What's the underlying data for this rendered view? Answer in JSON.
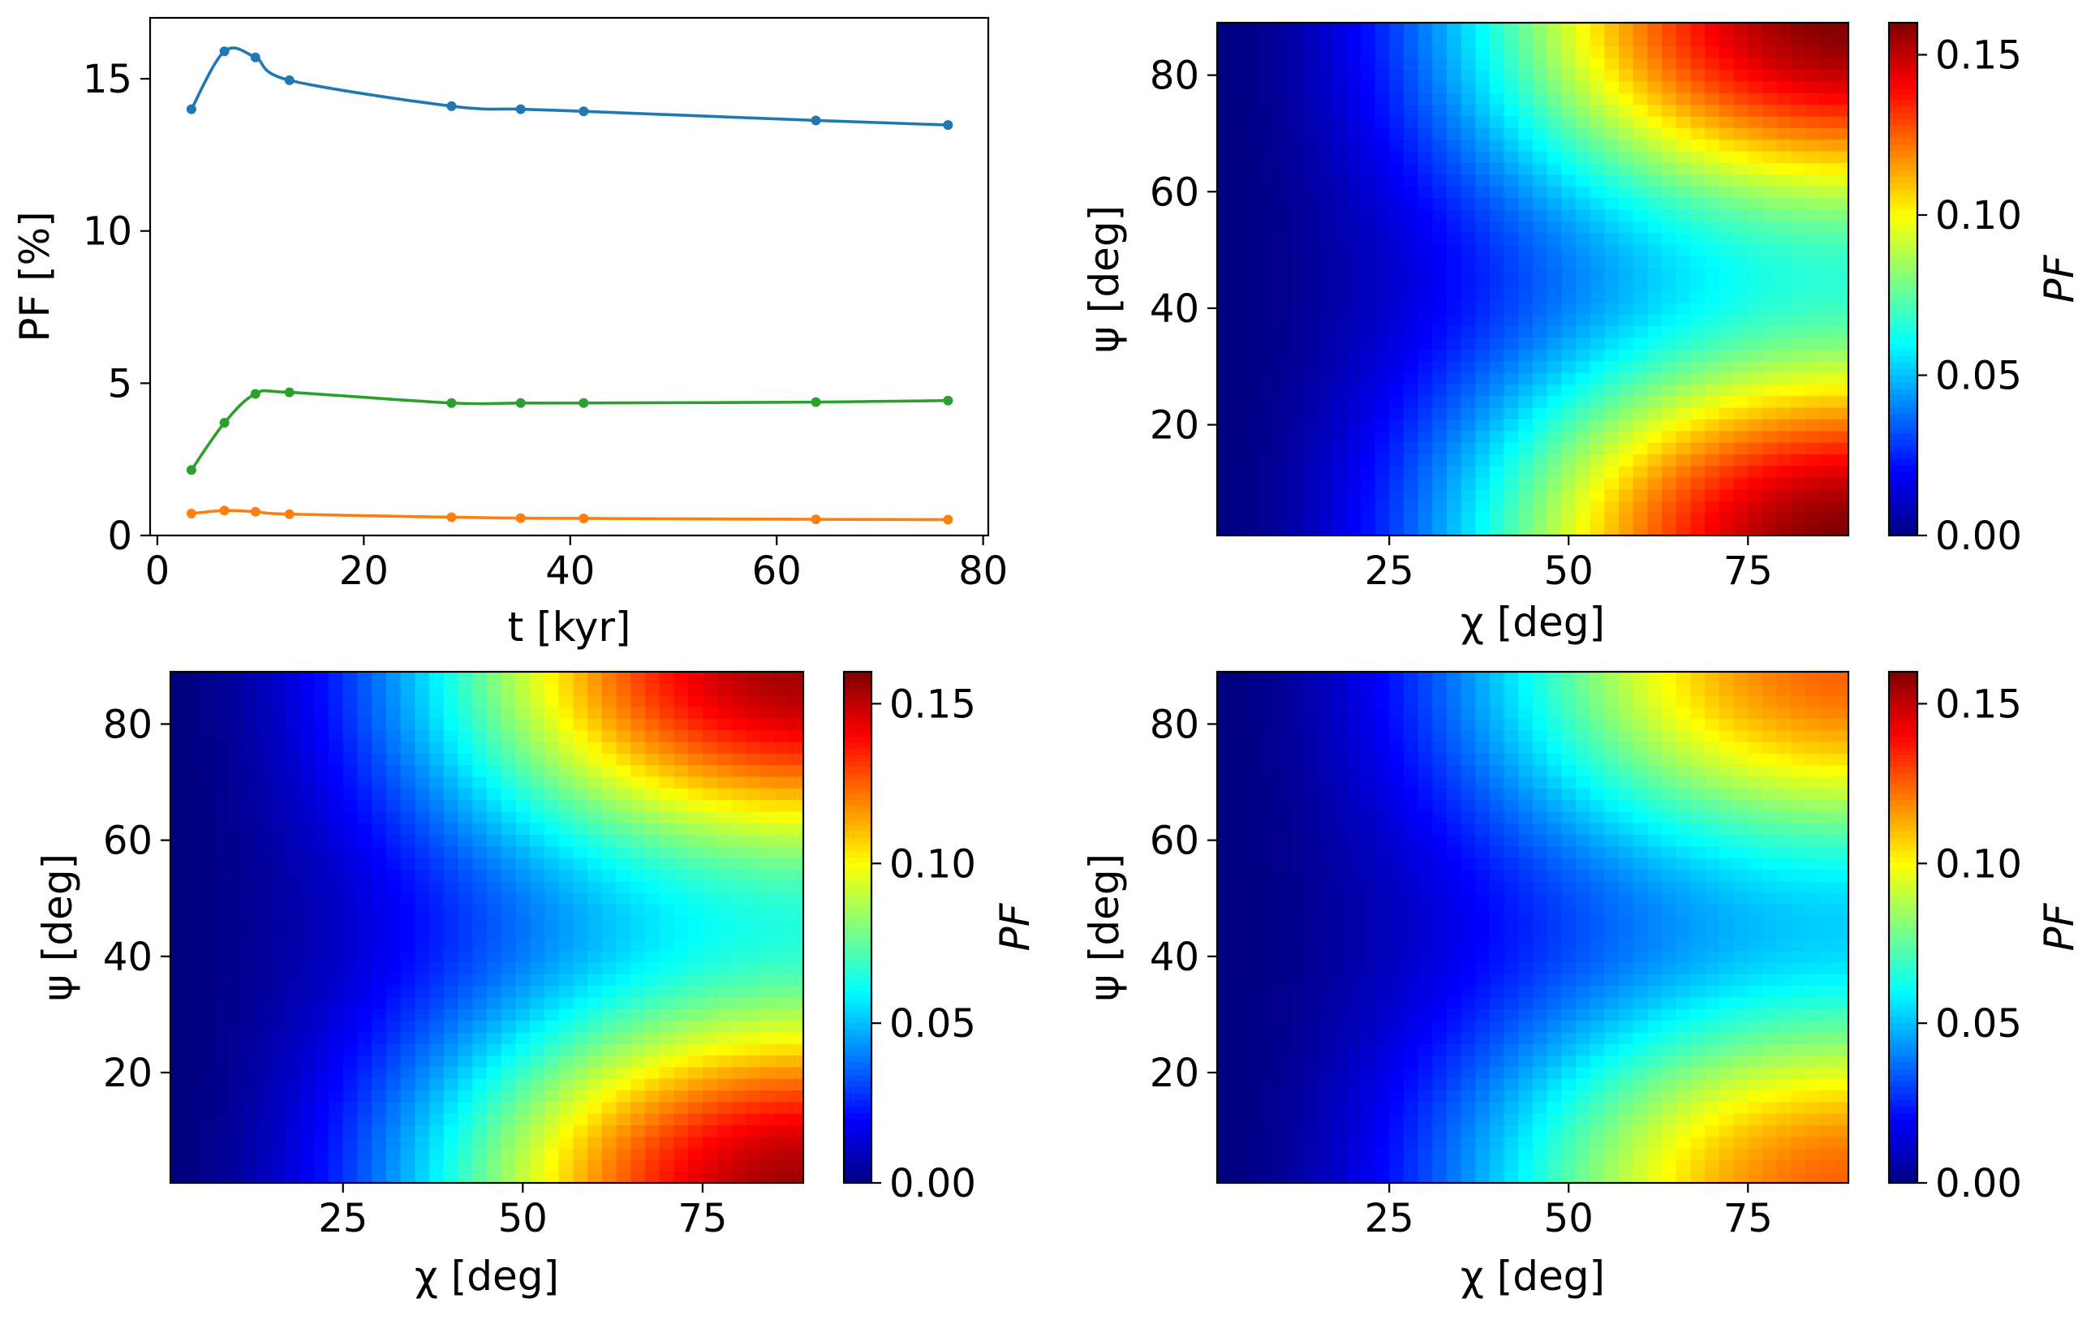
{
  "chart_data": [
    {
      "type": "line",
      "panel": "top-left",
      "title": "",
      "xlabel": "t [kyr]",
      "ylabel": "PF [%]",
      "xlim": [
        -0.7,
        80.5
      ],
      "ylim": [
        0,
        17
      ],
      "xticks": [
        0,
        20,
        40,
        60,
        80
      ],
      "yticks": [
        0,
        5,
        10,
        15
      ],
      "grid": false,
      "legend": "none",
      "x": [
        3.3,
        6.5,
        9.5,
        12.8,
        28.5,
        35.2,
        41.3,
        63.8,
        76.6
      ],
      "series": [
        {
          "name": "blue",
          "color": "#1f77b4",
          "values": [
            14.0,
            15.9,
            15.7,
            14.95,
            14.1,
            14.0,
            13.93,
            13.63,
            13.48
          ]
        },
        {
          "name": "green",
          "color": "#2ca02c",
          "values": [
            2.15,
            3.7,
            4.65,
            4.7,
            4.35,
            4.35,
            4.35,
            4.38,
            4.43
          ]
        },
        {
          "name": "orange",
          "color": "#ff7f0e",
          "values": [
            0.72,
            0.82,
            0.78,
            0.7,
            0.6,
            0.57,
            0.56,
            0.53,
            0.52
          ]
        }
      ]
    },
    {
      "type": "heatmap",
      "panel": "top-right",
      "xlabel": "χ [deg]",
      "ylabel": "ψ [deg]",
      "xlim": [
        1,
        89
      ],
      "ylim": [
        1,
        89
      ],
      "xticks": [
        25,
        50,
        75
      ],
      "yticks": [
        20,
        40,
        60,
        80
      ],
      "colorbar": {
        "label": "PF",
        "range": [
          0,
          0.16
        ],
        "ticks": [
          "0.00",
          "0.05",
          "0.10",
          "0.15"
        ],
        "colormap": "jet"
      },
      "pf_max": 0.16
    },
    {
      "type": "heatmap",
      "panel": "bottom-left",
      "xlabel": "χ [deg]",
      "ylabel": "ψ [deg]",
      "xlim": [
        1,
        89
      ],
      "ylim": [
        1,
        89
      ],
      "xticks": [
        25,
        50,
        75
      ],
      "yticks": [
        20,
        40,
        60,
        80
      ],
      "colorbar": {
        "label": "PF",
        "range": [
          0,
          0.16
        ],
        "ticks": [
          "0.00",
          "0.05",
          "0.10",
          "0.15"
        ],
        "colormap": "jet"
      },
      "pf_max": 0.155
    },
    {
      "type": "heatmap",
      "panel": "bottom-right",
      "xlabel": "χ [deg]",
      "ylabel": "ψ [deg]",
      "xlim": [
        1,
        89
      ],
      "ylim": [
        1,
        89
      ],
      "xticks": [
        25,
        50,
        75
      ],
      "yticks": [
        20,
        40,
        60,
        80
      ],
      "colorbar": {
        "label": "PF",
        "range": [
          0,
          0.16
        ],
        "ticks": [
          "0.00",
          "0.05",
          "0.10",
          "0.15"
        ],
        "colormap": "jet"
      },
      "pf_max": 0.125
    }
  ]
}
